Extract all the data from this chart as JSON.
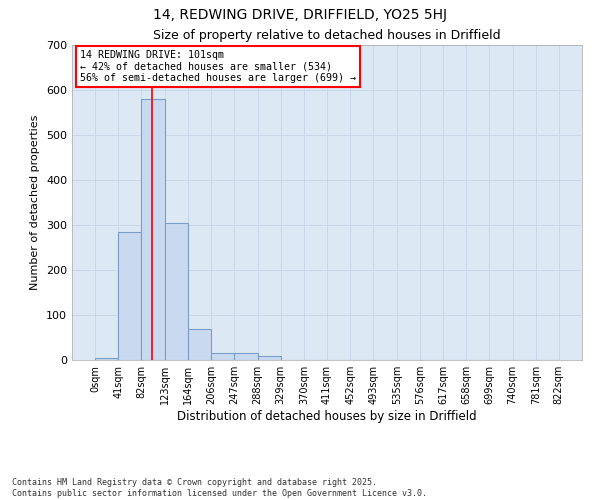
{
  "title": "14, REDWING DRIVE, DRIFFIELD, YO25 5HJ",
  "subtitle": "Size of property relative to detached houses in Driffield",
  "xlabel": "Distribution of detached houses by size in Driffield",
  "ylabel": "Number of detached properties",
  "footnote": "Contains HM Land Registry data © Crown copyright and database right 2025.\nContains public sector information licensed under the Open Government Licence v3.0.",
  "bar_edges": [
    0,
    41,
    82,
    123,
    164,
    206,
    247,
    288,
    329,
    370,
    411,
    452,
    493,
    535,
    576,
    617,
    658,
    699,
    740,
    781,
    822
  ],
  "bar_heights": [
    5,
    285,
    580,
    305,
    68,
    15,
    15,
    10,
    0,
    0,
    0,
    0,
    0,
    0,
    0,
    0,
    0,
    0,
    0,
    0
  ],
  "bar_color": "#c9d9f0",
  "bar_edge_color": "#7a9fc7",
  "bar_edge_width": 0.8,
  "grid_color": "#c8d8e8",
  "background_color": "#dce9f5",
  "fig_background_color": "#ffffff",
  "red_line_x": 101,
  "annotation_box_text": "14 REDWING DRIVE: 101sqm\n← 42% of detached houses are smaller (534)\n56% of semi-detached houses are larger (699) →",
  "ylim": [
    0,
    700
  ],
  "yticks": [
    0,
    100,
    200,
    300,
    400,
    500,
    600,
    700
  ],
  "tick_labels": [
    "0sqm",
    "41sqm",
    "82sqm",
    "123sqm",
    "164sqm",
    "206sqm",
    "247sqm",
    "288sqm",
    "329sqm",
    "370sqm",
    "411sqm",
    "452sqm",
    "493sqm",
    "535sqm",
    "576sqm",
    "617sqm",
    "658sqm",
    "699sqm",
    "740sqm",
    "781sqm",
    "822sqm"
  ]
}
